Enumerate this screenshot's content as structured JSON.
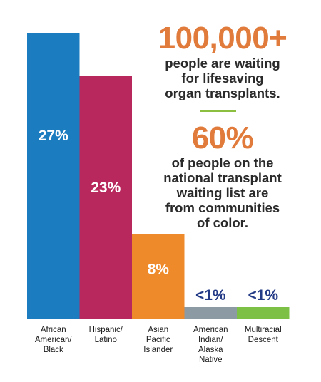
{
  "colors": {
    "big_number": "#e07b3c",
    "body_text": "#2a2a2a",
    "divider": "#8cbf3f",
    "small_value": "#233a86",
    "value_on_bar": "#ffffff"
  },
  "stats": {
    "headline_1": "100,000+",
    "text_1": [
      "people are waiting",
      "for lifesaving",
      "organ transplants."
    ],
    "headline_2": "60%",
    "text_2": [
      "of people on the",
      "national transplant",
      "waiting list are",
      "from communities",
      "of color."
    ]
  },
  "chart_data": {
    "type": "bar",
    "categories": [
      [
        "African",
        "American/",
        "Black"
      ],
      [
        "Hispanic/",
        "Latino"
      ],
      [
        "Asian",
        "Pacific",
        "Islander"
      ],
      [
        "American",
        "Indian/",
        "Alaska",
        "Native"
      ],
      [
        "Multiracial",
        "Descent"
      ]
    ],
    "values": [
      27,
      23,
      8,
      0.5,
      0.5
    ],
    "value_labels": [
      "27%",
      "23%",
      "8%",
      "<1%",
      "<1%"
    ],
    "bar_colors": [
      "#1c7cc0",
      "#b8285c",
      "#ef8a2b",
      "#8c9aa3",
      "#7cc045"
    ],
    "title": "",
    "xlabel": "",
    "ylabel": "",
    "ylim": [
      0,
      27.6
    ],
    "grid": false,
    "legend": "none"
  }
}
